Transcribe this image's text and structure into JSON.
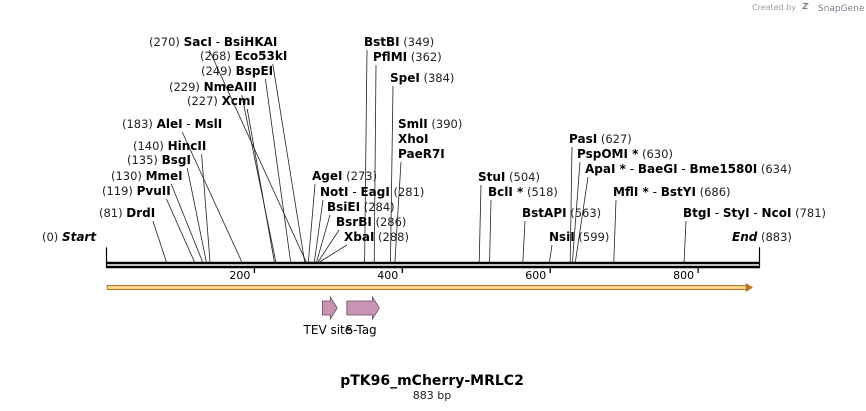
{
  "credit": {
    "prefix": "Created by",
    "brand": "SnapGene"
  },
  "construct": {
    "name": "pTK96_mCherry-MRLC2",
    "length": 883,
    "length_label": "883 bp"
  },
  "axis": {
    "ticks": [
      200,
      400,
      600,
      800
    ]
  },
  "sites": [
    {
      "pos": 0,
      "pos_label": "(0)",
      "name": "Start",
      "style": "it"
    },
    {
      "pos": 81,
      "pos_label": "(81)",
      "name": "DrdI"
    },
    {
      "pos": 119,
      "pos_label": "(119)",
      "name": "PvuII"
    },
    {
      "pos": 130,
      "pos_label": "(130)",
      "name": "MmeI"
    },
    {
      "pos": 135,
      "pos_label": "(135)",
      "name": "BsgI"
    },
    {
      "pos": 140,
      "pos_label": "(140)",
      "name": "HincII"
    },
    {
      "pos": 183,
      "pos_label": "(183)",
      "name": "AleI",
      "sep": " - ",
      "name2": "MslI"
    },
    {
      "pos": 227,
      "pos_label": "(227)",
      "name": "XcmI"
    },
    {
      "pos": 229,
      "pos_label": "(229)",
      "name": "NmeAIII"
    },
    {
      "pos": 249,
      "pos_label": "(249)",
      "name": "BspEI"
    },
    {
      "pos": 268,
      "pos_label": "(268)",
      "name": "Eco53kI"
    },
    {
      "pos": 270,
      "pos_label": "(270)",
      "name": "SacI",
      "sep": " - ",
      "name2": "BsiHKAI"
    },
    {
      "pos": 273,
      "pos_label": "(273)",
      "name": "AgeI",
      "pos_after": true
    },
    {
      "pos": 281,
      "pos_label": "(281)",
      "name": "NotI",
      "sep": " - ",
      "name2": "EagI",
      "pos_after": true
    },
    {
      "pos": 284,
      "pos_label": "(284)",
      "name": "BsiEI",
      "pos_after": true
    },
    {
      "pos": 286,
      "pos_label": "(286)",
      "name": "BsrBI",
      "pos_after": true
    },
    {
      "pos": 288,
      "pos_label": "(288)",
      "name": "XbaI",
      "pos_after": true
    },
    {
      "pos": 349,
      "pos_label": "(349)",
      "name": "BstBI",
      "pos_after": true
    },
    {
      "pos": 362,
      "pos_label": "(362)",
      "name": "PflMI",
      "pos_after": true
    },
    {
      "pos": 384,
      "pos_label": "(384)",
      "name": "SpeI",
      "pos_after": true
    },
    {
      "pos": 390,
      "pos_label": "(390)",
      "name": "SmlI",
      "extra": [
        "XhoI",
        "PaeR7I"
      ],
      "pos_after": true
    },
    {
      "pos": 504,
      "pos_label": "(504)",
      "name": "StuI",
      "pos_after": true
    },
    {
      "pos": 518,
      "pos_label": "(518)",
      "name": "BclI *",
      "pos_after": true
    },
    {
      "pos": 563,
      "pos_label": "(563)",
      "name": "BstAPI",
      "pos_after": true
    },
    {
      "pos": 599,
      "pos_label": "(599)",
      "name": "NsiI",
      "pos_after": true
    },
    {
      "pos": 627,
      "pos_label": "(627)",
      "name": "PasI",
      "pos_after": true
    },
    {
      "pos": 630,
      "pos_label": "(630)",
      "name": "PspOMI *",
      "pos_after": true
    },
    {
      "pos": 634,
      "pos_label": "(634)",
      "name": "ApaI *",
      "sep": " - ",
      "name2": "BaeGI",
      "sep2": " - ",
      "name3": "Bme1580I",
      "pos_after": true
    },
    {
      "pos": 686,
      "pos_label": "(686)",
      "name": "MflI *",
      "sep": " - ",
      "name2": "BstYI",
      "pos_after": true
    },
    {
      "pos": 781,
      "pos_label": "(781)",
      "name": "BtgI",
      "sep": " - ",
      "name2": "StyI",
      "sep2": " - ",
      "name3": "NcoI",
      "pos_after": true
    },
    {
      "pos": 883,
      "pos_label": "(883)",
      "name": "End",
      "style": "it",
      "pos_after": true
    }
  ],
  "features": [
    {
      "name": "TEV site",
      "start": 292,
      "end": 312,
      "direction": "forward",
      "color": "#c994b4"
    },
    {
      "name": "S-Tag",
      "start": 325,
      "end": 369,
      "direction": "forward",
      "color": "#c994b4"
    }
  ],
  "orf_bar": {
    "start": 1,
    "end": 874,
    "direction": "forward",
    "fill": "#f7d68f",
    "stroke": "#b8721e"
  },
  "colors": {
    "backbone": "#000000",
    "feature": "#c994b4",
    "orf_fill": "#f7d68f",
    "orf_stroke": "#b8721e"
  }
}
